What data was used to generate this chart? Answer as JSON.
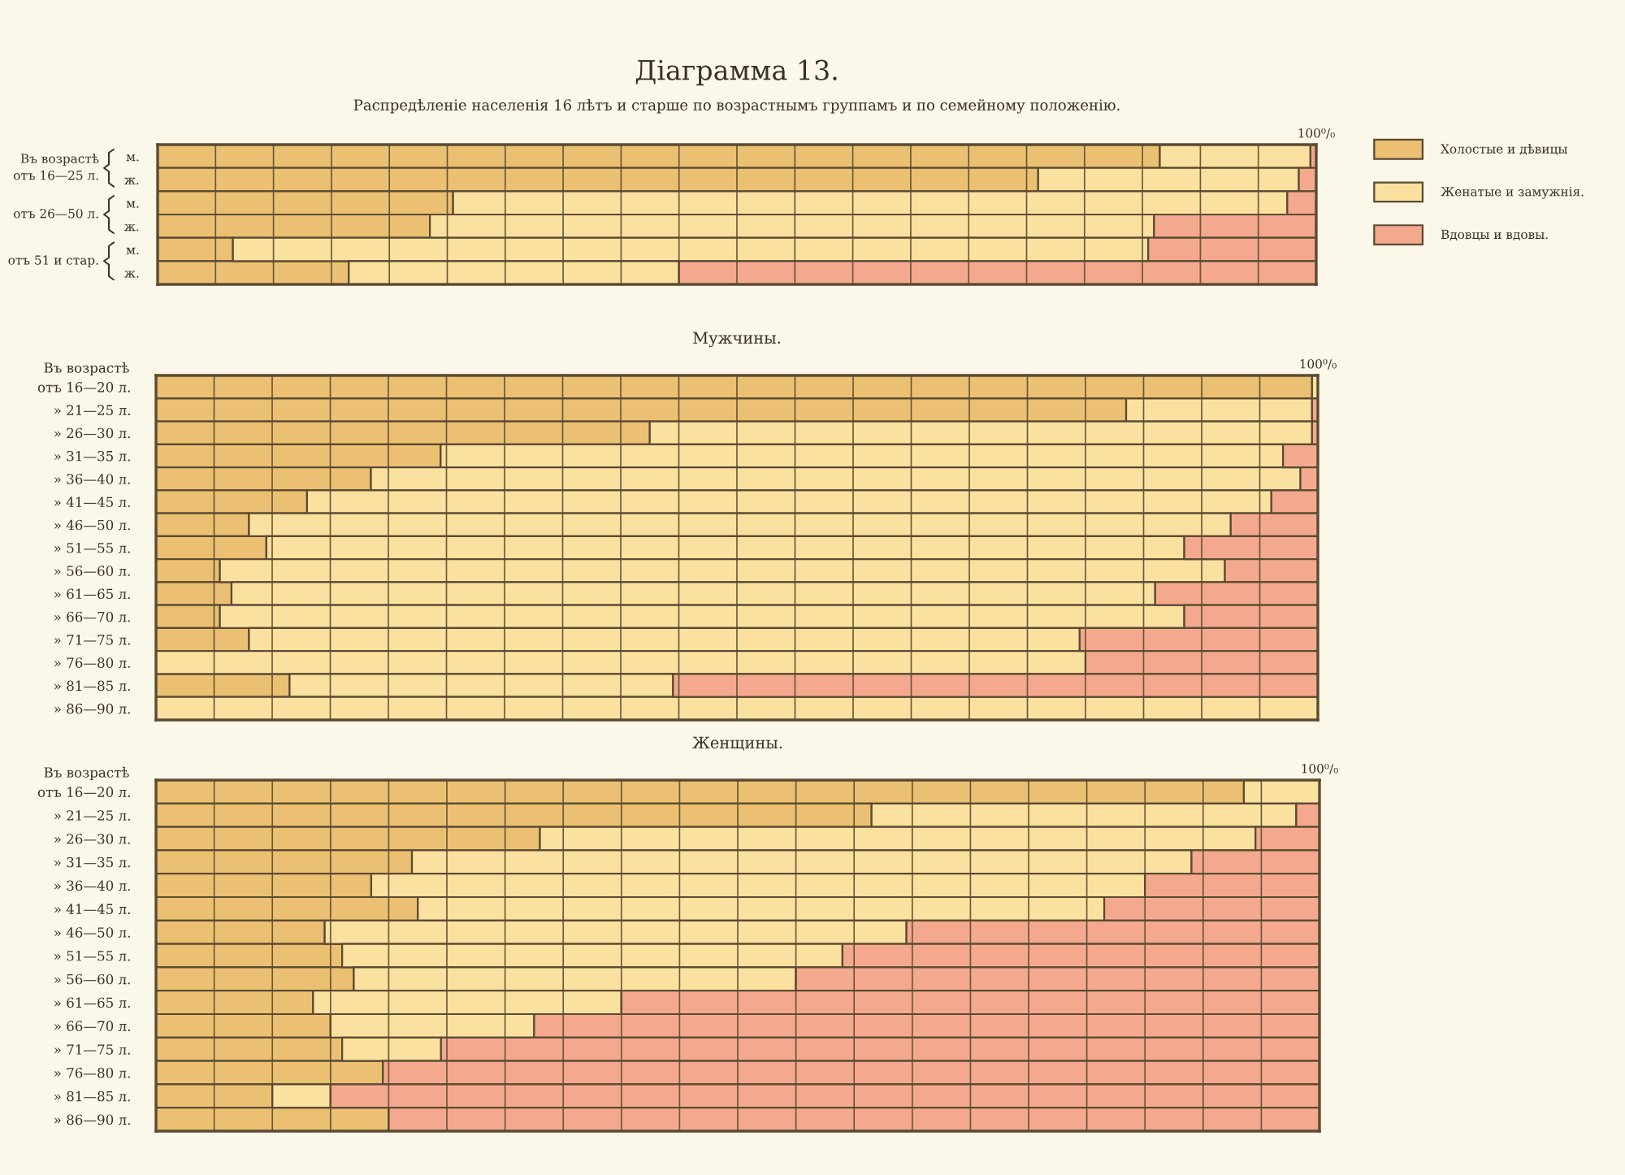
{
  "chart_data": [
    {
      "type": "bar",
      "orientation": "horizontal",
      "stacked": true,
      "title": "Діаграмма 13.",
      "subtitle": "Распредѣленіе населенія 16 лѣтъ и старше по возрастнымъ группамъ и по семейному положенію.",
      "categories": [
        "м.",
        "ж.",
        "м.",
        "ж.",
        "м.",
        "ж."
      ],
      "series": [
        {
          "name": "Холостые и дѣвицы",
          "color": "#ebc072",
          "values": [
            86.5,
            76,
            25.5,
            23.5,
            6.5,
            16.5
          ]
        },
        {
          "name": "Женатые и замужнія.",
          "color": "#fae1a0",
          "values": [
            13,
            22.5,
            72,
            62.5,
            79,
            28.5
          ]
        },
        {
          "name": "Вдовцы и вдовы.",
          "color": "#f4a98f",
          "values": [
            0.5,
            1.5,
            2.5,
            14,
            14.5,
            55
          ]
        }
      ],
      "xlim": [
        0,
        100
      ],
      "xticks": [
        {
          "value": 0,
          "label": null
        },
        {
          "value": 5,
          "label": null
        },
        {
          "value": 10,
          "label": null
        },
        {
          "value": 15,
          "label": null
        },
        {
          "value": 20,
          "label": null
        },
        {
          "value": 25,
          "label": null
        },
        {
          "value": 30,
          "label": null
        },
        {
          "value": 35,
          "label": null
        },
        {
          "value": 40,
          "label": null
        },
        {
          "value": 45,
          "label": null
        },
        {
          "value": 50,
          "label": null
        },
        {
          "value": 55,
          "label": null
        },
        {
          "value": 60,
          "label": null
        },
        {
          "value": 65,
          "label": null
        },
        {
          "value": 70,
          "label": null
        },
        {
          "value": 75,
          "label": null
        },
        {
          "value": 80,
          "label": null
        },
        {
          "value": 85,
          "label": null
        },
        {
          "value": 90,
          "label": null
        },
        {
          "value": 95,
          "label": null
        },
        {
          "value": 100,
          "label": "100⁰/₀"
        }
      ],
      "legend": "right",
      "grid": "x",
      "annotations": [
        "Въ возрастѣ\nотъ 16—25 л.",
        "отъ 26—50 л.",
        "отъ 51 и стар."
      ]
    },
    {
      "type": "bar",
      "orientation": "horizontal",
      "stacked": true,
      "title": "Мужчины.",
      "ylabel": "Въ возрастѣ",
      "categories": [
        "отъ 16—20 л.",
        "» 21—25 л.",
        "» 26—30 л.",
        "» 31—35 л.",
        "» 36—40 л.",
        "» 41—45 л.",
        "» 46—50 л.",
        "» 51—55 л.",
        "» 56—60 л.",
        "» 61—65 л.",
        "» 66—70 л.",
        "» 71—75 л.",
        "» 76—80 л.",
        "» 81—85 л.",
        "» 86—90 л."
      ],
      "series": [
        {
          "color": "#ebc072",
          "values": [
            99.5,
            83.5,
            42.5,
            24.5,
            18.5,
            13,
            8,
            9.5,
            5.5,
            6.5,
            5.5,
            8,
            0,
            11.5,
            0
          ]
        },
        {
          "color": "#fae1a0",
          "values": [
            0.5,
            16,
            57,
            72.5,
            80,
            83,
            84.5,
            79,
            86.5,
            79.5,
            83,
            71.5,
            80,
            33,
            100
          ]
        },
        {
          "color": "#f4a98f",
          "values": [
            0,
            0.5,
            0.5,
            3,
            1.5,
            4,
            7.5,
            11.5,
            8,
            14,
            11.5,
            20.5,
            20,
            55.5,
            0
          ]
        }
      ],
      "xlim": [
        0,
        100
      ],
      "xticks": [
        {
          "value": 0,
          "label": null
        },
        {
          "value": 5,
          "label": null
        },
        {
          "value": 10,
          "label": null
        },
        {
          "value": 15,
          "label": null
        },
        {
          "value": 20,
          "label": null
        },
        {
          "value": 25,
          "label": null
        },
        {
          "value": 30,
          "label": null
        },
        {
          "value": 35,
          "label": null
        },
        {
          "value": 40,
          "label": null
        },
        {
          "value": 45,
          "label": null
        },
        {
          "value": 50,
          "label": null
        },
        {
          "value": 55,
          "label": null
        },
        {
          "value": 60,
          "label": null
        },
        {
          "value": 65,
          "label": null
        },
        {
          "value": 70,
          "label": null
        },
        {
          "value": 75,
          "label": null
        },
        {
          "value": 80,
          "label": null
        },
        {
          "value": 85,
          "label": null
        },
        {
          "value": 90,
          "label": null
        },
        {
          "value": 95,
          "label": null
        },
        {
          "value": 100,
          "label": "100⁰/₀"
        }
      ],
      "grid": "x"
    },
    {
      "type": "bar",
      "orientation": "horizontal",
      "stacked": true,
      "title": "Женщины.",
      "ylabel": "Въ возрастѣ",
      "categories": [
        "отъ 16—20 л.",
        "» 21—25 л.",
        "» 26—30 л.",
        "» 31—35 л.",
        "» 36—40 л.",
        "» 41—45 л.",
        "» 46—50 л.",
        "» 51—55 л.",
        "» 56—60 л.",
        "» 61—65 л.",
        "» 66—70 л.",
        "» 71—75 л.",
        "» 76—80 л.",
        "» 81—85 л.",
        "» 86—90 л."
      ],
      "series": [
        {
          "color": "#ebc072",
          "values": [
            93.5,
            61.5,
            33,
            22,
            18.5,
            22.5,
            14.5,
            16,
            17,
            13.5,
            15,
            16,
            19.5,
            10,
            20
          ]
        },
        {
          "color": "#fae1a0",
          "values": [
            6.5,
            36.5,
            61.5,
            67,
            66.5,
            59,
            50,
            43,
            38,
            26.5,
            17.5,
            8.5,
            0,
            5,
            0
          ]
        },
        {
          "color": "#f4a98f",
          "values": [
            0,
            2,
            5.5,
            11,
            15,
            18.5,
            35.5,
            41,
            45,
            60,
            67.5,
            75.5,
            80.5,
            85,
            80
          ]
        }
      ],
      "xlim": [
        0,
        100
      ],
      "xticks": [
        {
          "value": 0,
          "label": null
        },
        {
          "value": 5,
          "label": null
        },
        {
          "value": 10,
          "label": null
        },
        {
          "value": 15,
          "label": null
        },
        {
          "value": 20,
          "label": null
        },
        {
          "value": 25,
          "label": null
        },
        {
          "value": 30,
          "label": null
        },
        {
          "value": 35,
          "label": null
        },
        {
          "value": 40,
          "label": null
        },
        {
          "value": 45,
          "label": null
        },
        {
          "value": 50,
          "label": null
        },
        {
          "value": 55,
          "label": null
        },
        {
          "value": 60,
          "label": null
        },
        {
          "value": 65,
          "label": null
        },
        {
          "value": 70,
          "label": null
        },
        {
          "value": 75,
          "label": null
        },
        {
          "value": 80,
          "label": null
        },
        {
          "value": 85,
          "label": null
        },
        {
          "value": 90,
          "label": null
        },
        {
          "value": 95,
          "label": null
        },
        {
          "value": 100,
          "label": "100⁰/₀"
        }
      ],
      "grid": "x"
    }
  ]
}
